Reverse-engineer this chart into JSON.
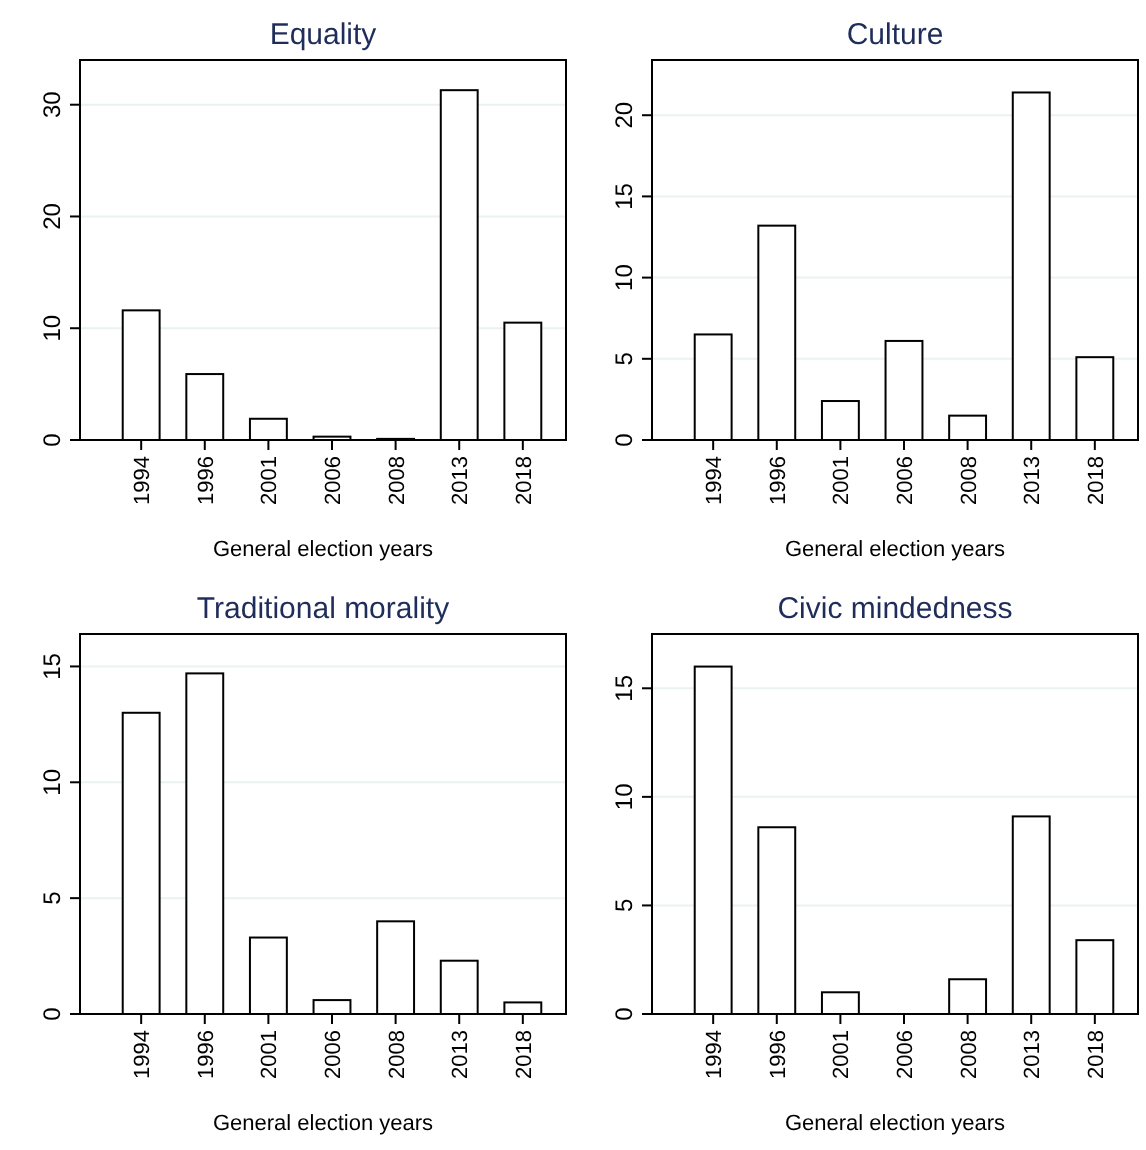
{
  "chart_data": [
    {
      "type": "bar",
      "title": "Equality",
      "xlabel": "General election years",
      "categories": [
        "1994",
        "1996",
        "2001",
        "2006",
        "2008",
        "2013",
        "2018"
      ],
      "values": [
        11.6,
        5.9,
        1.9,
        0.3,
        0.1,
        31.3,
        10.5
      ],
      "color": "#ffffff",
      "ylim": [
        0,
        34
      ],
      "yticks": [
        0,
        10,
        20,
        30
      ],
      "grid": "y"
    },
    {
      "type": "bar",
      "title": "Culture",
      "xlabel": "General election years",
      "categories": [
        "1994",
        "1996",
        "2001",
        "2006",
        "2008",
        "2013",
        "2018"
      ],
      "values": [
        6.5,
        13.2,
        2.4,
        6.1,
        1.5,
        21.4,
        5.1
      ],
      "color": "#ffffff",
      "ylim": [
        0,
        23.4
      ],
      "yticks": [
        0,
        5,
        10,
        15,
        20
      ],
      "grid": "y"
    },
    {
      "type": "bar",
      "title": "Traditional morality",
      "xlabel": "General election years",
      "categories": [
        "1994",
        "1996",
        "2001",
        "2006",
        "2008",
        "2013",
        "2018"
      ],
      "values": [
        13.0,
        14.7,
        3.3,
        0.6,
        4.0,
        2.3,
        0.5
      ],
      "color": "#ffffff",
      "ylim": [
        0,
        16.4
      ],
      "yticks": [
        0,
        5,
        10,
        15
      ],
      "grid": "y"
    },
    {
      "type": "bar",
      "title": "Civic mindedness",
      "xlabel": "General election years",
      "categories": [
        "1994",
        "1996",
        "2001",
        "2006",
        "2008",
        "2013",
        "2018"
      ],
      "values": [
        16.0,
        8.6,
        1.0,
        0.0,
        1.6,
        9.1,
        3.4
      ],
      "color": "#ffffff",
      "ylim": [
        0,
        17.5
      ],
      "yticks": [
        0,
        5,
        10,
        15
      ],
      "grid": "y"
    }
  ]
}
